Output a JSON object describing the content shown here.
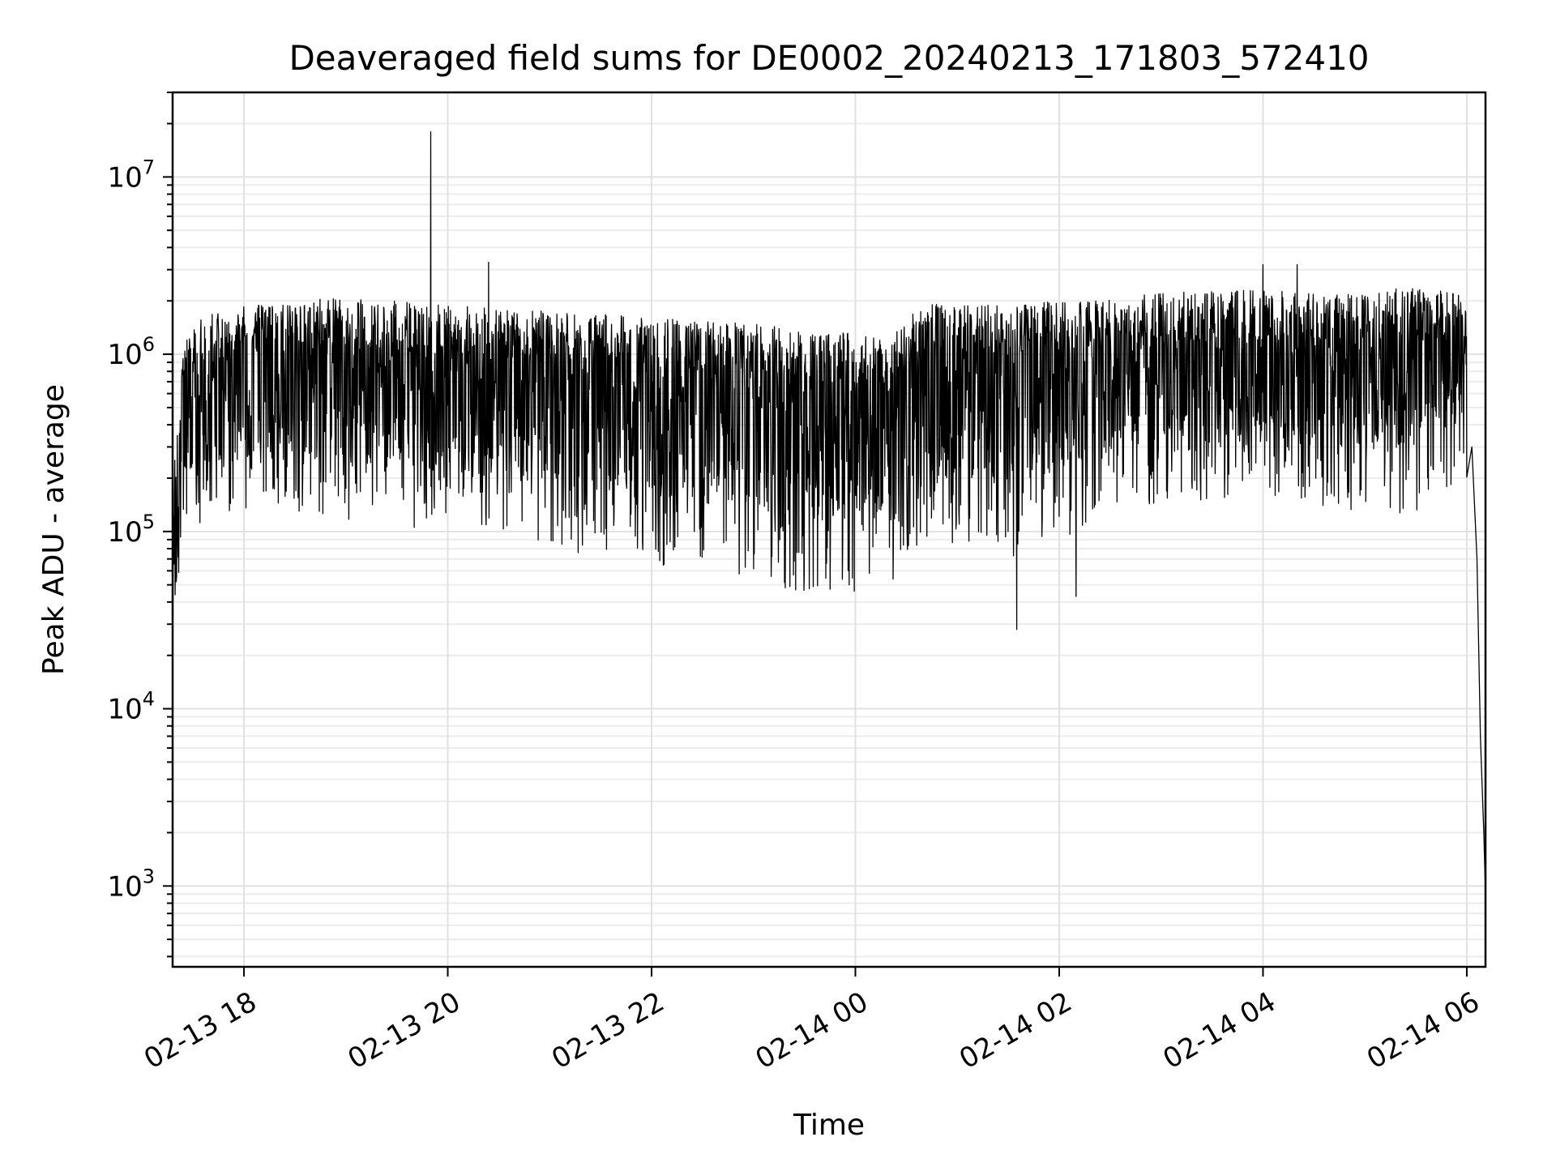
{
  "chart_data": {
    "type": "line",
    "title": "Deaveraged field sums for DE0002_20240213_171803_572410",
    "xlabel": "Time",
    "ylabel": "Peak ADU - average",
    "xlim": [
      "2024-02-13T17:18",
      "2024-02-14T06:11"
    ],
    "ylim": [
      350,
      30000000
    ],
    "yscale": "log",
    "grid": true,
    "x_ticks": [
      {
        "time": "2024-02-13T18:00",
        "label": "02-13 18"
      },
      {
        "time": "2024-02-13T20:00",
        "label": "02-13 20"
      },
      {
        "time": "2024-02-13T22:00",
        "label": "02-13 22"
      },
      {
        "time": "2024-02-14T00:00",
        "label": "02-14 00"
      },
      {
        "time": "2024-02-14T02:00",
        "label": "02-14 02"
      },
      {
        "time": "2024-02-14T04:00",
        "label": "02-14 04"
      },
      {
        "time": "2024-02-14T06:00",
        "label": "02-14 06"
      }
    ],
    "y_ticks": [
      {
        "value": 1000,
        "base": "10",
        "exp": "3"
      },
      {
        "value": 10000,
        "base": "10",
        "exp": "4"
      },
      {
        "value": 100000,
        "base": "10",
        "exp": "5"
      },
      {
        "value": 1000000,
        "base": "10",
        "exp": "6"
      },
      {
        "value": 10000000,
        "base": "10",
        "exp": "7"
      }
    ],
    "envelope": {
      "time": [
        "2024-02-13T17:18",
        "2024-02-13T17:25",
        "2024-02-13T17:40",
        "2024-02-13T18:00",
        "2024-02-13T18:30",
        "2024-02-13T19:00",
        "2024-02-13T19:30",
        "2024-02-13T20:00",
        "2024-02-13T20:30",
        "2024-02-13T21:00",
        "2024-02-13T21:30",
        "2024-02-13T22:00",
        "2024-02-13T22:30",
        "2024-02-13T23:00",
        "2024-02-13T23:30",
        "2024-02-14T00:00",
        "2024-02-14T00:20",
        "2024-02-14T00:40",
        "2024-02-14T01:00",
        "2024-02-14T01:30",
        "2024-02-14T02:00",
        "2024-02-14T02:30",
        "2024-02-14T03:00",
        "2024-02-14T03:30",
        "2024-02-14T04:00",
        "2024-02-14T04:30",
        "2024-02-14T05:00",
        "2024-02-14T05:30",
        "2024-02-14T06:00"
      ],
      "upper": [
        200000,
        1500000,
        1700000,
        1900000,
        2000000,
        2100000,
        2000000,
        1900000,
        1800000,
        1750000,
        1700000,
        1600000,
        1550000,
        1500000,
        1400000,
        1300000,
        1200000,
        2000000,
        1900000,
        1900000,
        2000000,
        2100000,
        2200000,
        2300000,
        2300000,
        2200000,
        2300000,
        2400000,
        2200000
      ],
      "lower": [
        30000,
        100000,
        120000,
        130000,
        130000,
        110000,
        110000,
        90000,
        85000,
        80000,
        70000,
        65000,
        60000,
        50000,
        45000,
        45000,
        50000,
        90000,
        80000,
        70000,
        90000,
        120000,
        140000,
        150000,
        150000,
        140000,
        130000,
        120000,
        200000
      ]
    },
    "spikes": [
      {
        "time": "2024-02-13T19:50",
        "value": 18000000
      },
      {
        "time": "2024-02-13T20:24",
        "value": 3300000
      },
      {
        "time": "2024-02-14T04:00",
        "value": 3200000
      },
      {
        "time": "2024-02-14T04:20",
        "value": 3200000
      },
      {
        "time": "2024-02-14T01:35",
        "value": 28000
      },
      {
        "time": "2024-02-14T02:10",
        "value": 43000
      }
    ],
    "tail": {
      "time": [
        "2024-02-14T06:00",
        "2024-02-14T06:03",
        "2024-02-14T06:06",
        "2024-02-14T06:08",
        "2024-02-14T06:10",
        "2024-02-14T06:11"
      ],
      "value": [
        900000,
        300000,
        70000,
        7000,
        2000,
        900
      ]
    }
  }
}
